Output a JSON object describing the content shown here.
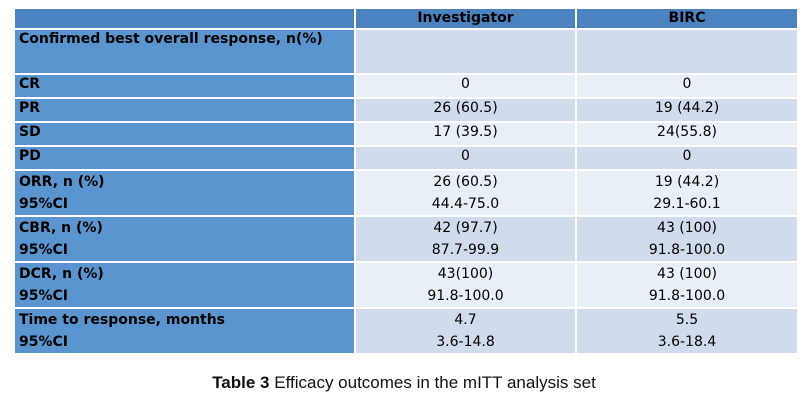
{
  "table": {
    "columns": [
      "",
      "Investigator",
      "BIRC"
    ],
    "section_header": "Confirmed best overall response, n(%)",
    "rows": [
      {
        "label": [
          "CR"
        ],
        "investigator": [
          "0"
        ],
        "birc": [
          "0"
        ]
      },
      {
        "label": [
          "PR"
        ],
        "investigator": [
          "26 (60.5)"
        ],
        "birc": [
          "19 (44.2)"
        ]
      },
      {
        "label": [
          "SD"
        ],
        "investigator": [
          "17 (39.5)"
        ],
        "birc": [
          "24(55.8)"
        ]
      },
      {
        "label": [
          "PD"
        ],
        "investigator": [
          "0"
        ],
        "birc": [
          "0"
        ]
      },
      {
        "label": [
          "ORR, n (%)",
          "95%CI"
        ],
        "investigator": [
          "26 (60.5)",
          "44.4-75.0"
        ],
        "birc": [
          "19 (44.2)",
          "29.1-60.1"
        ]
      },
      {
        "label": [
          "CBR, n (%)",
          "95%CI"
        ],
        "investigator": [
          "42 (97.7)",
          "87.7-99.9"
        ],
        "birc": [
          "43 (100)",
          "91.8-100.0"
        ]
      },
      {
        "label": [
          "DCR, n (%)",
          "95%CI"
        ],
        "investigator": [
          "43(100)",
          "91.8-100.0"
        ],
        "birc": [
          "43 (100)",
          "91.8-100.0"
        ]
      },
      {
        "label": [
          "Time to response, months",
          "95%CI"
        ],
        "investigator": [
          "4.7",
          "3.6-14.8"
        ],
        "birc": [
          "5.5",
          "3.6-18.4"
        ]
      }
    ]
  },
  "caption": {
    "number": "Table 3",
    "text": " Efficacy outcomes in the mITT analysis set"
  }
}
